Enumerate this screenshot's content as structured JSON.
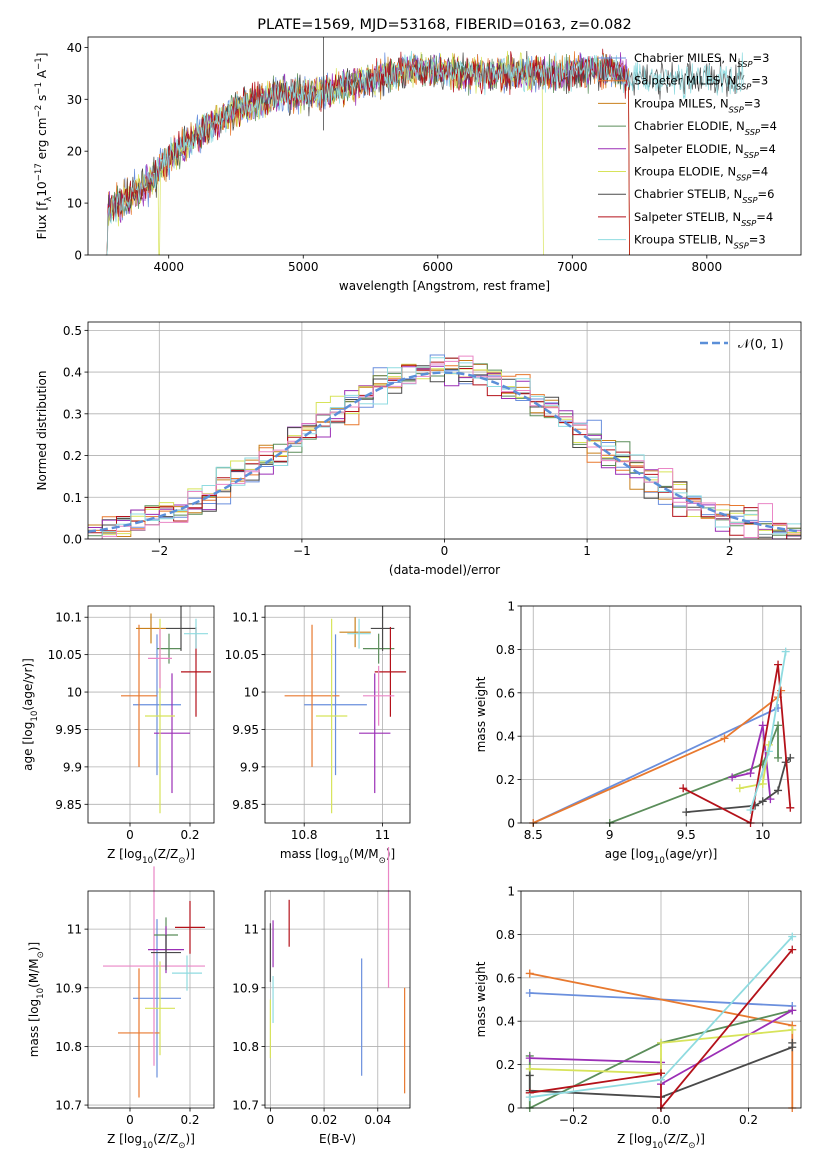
{
  "colors": {
    "chabrier_miles": "#6a8fdd",
    "salpeter_miles": "#e8792f",
    "kroupa_miles": "#c9801c",
    "chabrier_elodie": "#5b8d5a",
    "salpeter_elodie": "#9b2fb6",
    "kroupa_elodie": "#d7e35a",
    "chabrier_stelib": "#4a4a4a",
    "salpeter_stelib": "#b4121a",
    "kroupa_stelib": "#8fdbe0",
    "pink": "#ea86c6",
    "normal_curve": "#5b8fd8"
  },
  "chart_data": [
    {
      "type": "line",
      "title": "PLATE=1569, MJD=53168, FIBERID=0163, z=0.082",
      "xlabel": "wavelength [Angstrom, rest frame]",
      "ylabel": "Flux [f$_\\lambda$10$^{-17}$ erg cm$^{-2}$ s$^{-1}$ A$^{-1}$]",
      "xlim": [
        3400,
        8700
      ],
      "ylim": [
        0,
        42
      ],
      "xticks": [
        "4000",
        "5000",
        "6000",
        "7000",
        "8000"
      ],
      "yticks": [
        "0",
        "10",
        "20",
        "30",
        "40"
      ],
      "grid": false,
      "legend_position": "right",
      "legend": [
        {
          "label": "Chabrier MILES, N",
          "sub": "SSP",
          "tail": "=3",
          "color": "#6a8fdd"
        },
        {
          "label": "Salpeter MILES, N",
          "sub": "SSP",
          "tail": "=3",
          "color": "#e8792f"
        },
        {
          "label": "Kroupa MILES, N",
          "sub": "SSP",
          "tail": "=3",
          "color": "#c9801c"
        },
        {
          "label": "Chabrier ELODIE, N",
          "sub": "SSP",
          "tail": "=4",
          "color": "#5b8d5a"
        },
        {
          "label": "Salpeter ELODIE, N",
          "sub": "SSP",
          "tail": "=4",
          "color": "#9b2fb6"
        },
        {
          "label": "Kroupa ELODIE, N",
          "sub": "SSP",
          "tail": "=4",
          "color": "#d7e35a"
        },
        {
          "label": "Chabrier STELIB, N",
          "sub": "SSP",
          "tail": "=6",
          "color": "#4a4a4a"
        },
        {
          "label": "Salpeter STELIB, N",
          "sub": "SSP",
          "tail": "=4",
          "color": "#b4121a"
        },
        {
          "label": "Kroupa STELIB, N",
          "sub": "SSP",
          "tail": "=3",
          "color": "#8fdbe0"
        }
      ],
      "continuum": {
        "x": [
          3530,
          3700,
          3850,
          3950,
          4100,
          4300,
          4500,
          4800,
          5100,
          5400,
          5800,
          6200,
          6600,
          7000,
          7300,
          7420
        ],
        "y": [
          8,
          11,
          14,
          17,
          21,
          25,
          28,
          31,
          31,
          33,
          36,
          35,
          35,
          35,
          36,
          34
        ]
      }
    },
    {
      "type": "histogram",
      "xlabel": "(data-model)/error",
      "ylabel": "Normed distribution",
      "xlim": [
        -2.5,
        2.5
      ],
      "ylim": [
        0,
        0.52
      ],
      "xticks": [
        -2,
        -1,
        0,
        1,
        2
      ],
      "yticks": [
        0.0,
        0.1,
        0.2,
        0.3,
        0.4,
        0.5
      ],
      "xtick_labels": [
        "−2",
        "−1",
        "0",
        "1",
        "2"
      ],
      "ytick_labels": [
        "0.0",
        "0.1",
        "0.2",
        "0.3",
        "0.4",
        "0.5"
      ],
      "grid": true,
      "legend_position": "top-right",
      "legend": [
        {
          "label": "$\\mathcal{N}(0, 1)$",
          "style": "dashed"
        }
      ],
      "bin_width": 0.1
    },
    {
      "type": "errorbar",
      "xlabel": "Z [log$_{10}$(Z/Z$_\\odot$)]",
      "ylabel": "age  [log$_{10}$(age/yr)]",
      "xlim": [
        -0.14,
        0.28
      ],
      "ylim": [
        9.825,
        10.115
      ],
      "xticks": [
        0.0,
        0.2
      ],
      "yticks": [
        9.85,
        9.9,
        9.95,
        10.0,
        10.05,
        10.1
      ],
      "grid": true,
      "points": [
        {
          "x": 0.09,
          "y": 9.983,
          "xerr": 0.08,
          "yerr": 0.094,
          "color": "#6a8fdd"
        },
        {
          "x": 0.03,
          "y": 9.995,
          "xerr": 0.06,
          "yerr": 0.095,
          "color": "#e8792f"
        },
        {
          "x": 0.07,
          "y": 10.085,
          "xerr": 0.05,
          "yerr": 0.02,
          "color": "#c9801c"
        },
        {
          "x": 0.13,
          "y": 10.058,
          "xerr": 0.04,
          "yerr": 0.02,
          "color": "#5b8d5a"
        },
        {
          "x": 0.14,
          "y": 9.945,
          "xerr": 0.06,
          "yerr": 0.08,
          "color": "#9b2fb6"
        },
        {
          "x": 0.1,
          "y": 9.968,
          "xerr": 0.05,
          "yerr": 0.13,
          "color": "#d7e35a"
        },
        {
          "x": 0.17,
          "y": 10.085,
          "xerr": 0.05,
          "yerr": 0.03,
          "color": "#4a4a4a"
        },
        {
          "x": 0.22,
          "y": 10.027,
          "xerr": 0.05,
          "yerr": 0.06,
          "color": "#b4121a"
        },
        {
          "x": 0.1,
          "y": 10.045,
          "xerr": 0.04,
          "yerr": 0.04,
          "color": "#ea86c6"
        },
        {
          "x": 0.22,
          "y": 10.078,
          "xerr": 0.04,
          "yerr": 0.02,
          "color": "#8fdbe0"
        }
      ]
    },
    {
      "type": "errorbar",
      "xlabel": "mass [log$_{10}$(M/M$_\\odot$)]",
      "ylabel": "",
      "xlim": [
        10.7,
        11.07
      ],
      "ylim": [
        9.825,
        10.115
      ],
      "xticks": [
        10.8,
        11.0
      ],
      "yticks": [
        9.85,
        9.9,
        9.95,
        10.0,
        10.05,
        10.1
      ],
      "grid": true,
      "points": [
        {
          "x": 10.88,
          "y": 9.983,
          "xerr": 0.08,
          "yerr": 0.094,
          "color": "#6a8fdd"
        },
        {
          "x": 10.82,
          "y": 9.995,
          "xerr": 0.07,
          "yerr": 0.095,
          "color": "#e8792f"
        },
        {
          "x": 10.93,
          "y": 10.08,
          "xerr": 0.04,
          "yerr": 0.02,
          "color": "#c9801c"
        },
        {
          "x": 10.99,
          "y": 10.058,
          "xerr": 0.04,
          "yerr": 0.02,
          "color": "#5b8d5a"
        },
        {
          "x": 10.98,
          "y": 9.945,
          "xerr": 0.04,
          "yerr": 0.08,
          "color": "#9b2fb6"
        },
        {
          "x": 10.87,
          "y": 9.968,
          "xerr": 0.04,
          "yerr": 0.13,
          "color": "#d7e35a"
        },
        {
          "x": 11.0,
          "y": 10.085,
          "xerr": 0.03,
          "yerr": 0.03,
          "color": "#4a4a4a"
        },
        {
          "x": 11.02,
          "y": 10.027,
          "xerr": 0.04,
          "yerr": 0.06,
          "color": "#b4121a"
        },
        {
          "x": 10.99,
          "y": 9.995,
          "xerr": 0.04,
          "yerr": 0.04,
          "color": "#ea86c6"
        },
        {
          "x": 10.94,
          "y": 10.078,
          "xerr": 0.03,
          "yerr": 0.02,
          "color": "#8fdbe0"
        }
      ]
    },
    {
      "type": "line",
      "xlabel": "age  [log$_{10}$(age/yr)]",
      "ylabel": "mass weight",
      "xlim": [
        8.42,
        10.25
      ],
      "ylim": [
        0,
        1.0
      ],
      "xticks": [
        8.5,
        9.0,
        9.5,
        10.0
      ],
      "yticks": [
        0.0,
        0.2,
        0.4,
        0.6,
        0.8,
        1.0
      ],
      "grid": true,
      "series": [
        {
          "color": "#6a8fdd",
          "x": [
            8.5,
            10.1
          ],
          "y": [
            0.0,
            0.53
          ]
        },
        {
          "color": "#e8792f",
          "x": [
            8.5,
            9.75,
            10.1,
            10.12
          ],
          "y": [
            0.0,
            0.39,
            0.58,
            0.61
          ]
        },
        {
          "color": "#5b8d5a",
          "x": [
            9.0,
            10.0,
            10.1,
            10.1
          ],
          "y": [
            0.0,
            0.27,
            0.45,
            0.3
          ]
        },
        {
          "color": "#9b2fb6",
          "x": [
            9.8,
            9.92,
            10.0,
            10.05
          ],
          "y": [
            0.21,
            0.23,
            0.45,
            0.11
          ]
        },
        {
          "color": "#d7e35a",
          "x": [
            9.85,
            10.0,
            10.04
          ],
          "y": [
            0.16,
            0.18,
            0.36
          ]
        },
        {
          "color": "#4a4a4a",
          "x": [
            9.5,
            9.95,
            10.0,
            10.1,
            10.15,
            10.18
          ],
          "y": [
            0.05,
            0.08,
            0.1,
            0.15,
            0.28,
            0.3
          ]
        },
        {
          "color": "#b4121a",
          "x": [
            9.48,
            9.92,
            10.1,
            10.18
          ],
          "y": [
            0.16,
            0.0,
            0.73,
            0.07
          ]
        },
        {
          "color": "#8fdbe0",
          "x": [
            9.92,
            10.04,
            10.15
          ],
          "y": [
            0.06,
            0.33,
            0.79
          ]
        }
      ]
    },
    {
      "type": "errorbar",
      "xlabel": "Z [log$_{10}$(Z/Z$_\\odot$)]",
      "ylabel": "mass [log$_{10}$(M/M$_\\odot$)]",
      "xlim": [
        -0.14,
        0.28
      ],
      "ylim": [
        10.695,
        11.065
      ],
      "xticks": [
        0.0,
        0.2
      ],
      "yticks": [
        10.7,
        10.8,
        10.9,
        11.0
      ],
      "grid": true,
      "points": [
        {
          "x": 0.09,
          "y": 10.882,
          "xerr": 0.08,
          "yerr": 0.135,
          "color": "#6a8fdd"
        },
        {
          "x": 0.03,
          "y": 10.823,
          "xerr": 0.07,
          "yerr": 0.11,
          "color": "#e8792f"
        },
        {
          "x": 0.08,
          "y": 10.937,
          "xerr": 0.17,
          "yerr": 0.17,
          "color": "#ea86c6"
        },
        {
          "x": 0.12,
          "y": 10.99,
          "xerr": 0.04,
          "yerr": 0.03,
          "color": "#5b8d5a"
        },
        {
          "x": 0.12,
          "y": 10.965,
          "xerr": 0.06,
          "yerr": 0.04,
          "color": "#9b2fb6"
        },
        {
          "x": 0.1,
          "y": 10.865,
          "xerr": 0.05,
          "yerr": 0.08,
          "color": "#d7e35a"
        },
        {
          "x": 0.12,
          "y": 10.96,
          "xerr": 0.05,
          "yerr": 0.03,
          "color": "#4a4a4a"
        },
        {
          "x": 0.2,
          "y": 11.003,
          "xerr": 0.05,
          "yerr": 0.045,
          "color": "#b4121a"
        },
        {
          "x": 0.19,
          "y": 10.925,
          "xerr": 0.05,
          "yerr": 0.03,
          "color": "#8fdbe0"
        }
      ]
    },
    {
      "type": "errorbar",
      "xlabel": "E(B-V)",
      "ylabel": "",
      "xlim": [
        -0.002,
        0.052
      ],
      "ylim": [
        10.695,
        11.065
      ],
      "xticks": [
        0.0,
        0.02,
        0.04
      ],
      "yticks": [
        10.7,
        10.8,
        10.9,
        11.0
      ],
      "grid": true,
      "points": [
        {
          "x": 0.0,
          "y": 10.83,
          "yerr": 0.05,
          "color": "#d7e35a"
        },
        {
          "x": 0.0,
          "y": 10.96,
          "yerr": 0.05,
          "color": "#4a4a4a"
        },
        {
          "x": 0.001,
          "y": 10.88,
          "yerr": 0.04,
          "color": "#8fdbe0"
        },
        {
          "x": 0.001,
          "y": 10.975,
          "yerr": 0.04,
          "color": "#9b2fb6"
        },
        {
          "x": 0.007,
          "y": 11.01,
          "yerr": 0.04,
          "color": "#b4121a"
        },
        {
          "x": 0.034,
          "y": 10.85,
          "yerr": 0.1,
          "color": "#6a8fdd"
        },
        {
          "x": 0.044,
          "y": 11.02,
          "yerr": 0.12,
          "color": "#ea86c6"
        },
        {
          "x": 0.05,
          "y": 10.81,
          "yerr": 0.09,
          "color": "#e8792f"
        }
      ]
    },
    {
      "type": "line",
      "xlabel": "Z [log$_{10}$(Z/Z$_\\odot$)]",
      "ylabel": "mass weight",
      "xlim": [
        -0.32,
        0.32
      ],
      "ylim": [
        0,
        1.0
      ],
      "xticks": [
        -0.2,
        0.0,
        0.2
      ],
      "yticks": [
        0.0,
        0.2,
        0.4,
        0.6,
        0.8,
        1.0
      ],
      "xtick_labels": [
        "−0.2",
        "0.0",
        "0.2"
      ],
      "grid": true,
      "series": [
        {
          "color": "#6a8fdd",
          "x": [
            -0.3,
            0.3
          ],
          "y": [
            0.53,
            0.47
          ]
        },
        {
          "color": "#e8792f",
          "x": [
            -0.3,
            0.3,
            0.3
          ],
          "y": [
            0.62,
            0.38,
            0.0
          ]
        },
        {
          "color": "#5b8d5a",
          "x": [
            -0.3,
            -0.3,
            0.0,
            0.3
          ],
          "y": [
            0.24,
            0.0,
            0.3,
            0.45
          ]
        },
        {
          "color": "#9b2fb6",
          "x": [
            -0.3,
            0.0,
            0.0,
            0.3
          ],
          "y": [
            0.23,
            0.21,
            0.11,
            0.45
          ]
        },
        {
          "color": "#d7e35a",
          "x": [
            -0.3,
            0.0,
            0.0,
            0.3
          ],
          "y": [
            0.18,
            0.16,
            0.3,
            0.36
          ]
        },
        {
          "color": "#4a4a4a",
          "x": [
            -0.3,
            -0.3,
            0.0,
            0.3,
            0.3
          ],
          "y": [
            0.15,
            0.08,
            0.05,
            0.28,
            0.3
          ]
        },
        {
          "color": "#b4121a",
          "x": [
            -0.3,
            0.0,
            0.0,
            0.3
          ],
          "y": [
            0.07,
            0.16,
            0.0,
            0.73
          ]
        },
        {
          "color": "#8fdbe0",
          "x": [
            -0.3,
            0.0,
            0.3
          ],
          "y": [
            0.05,
            0.13,
            0.79
          ]
        }
      ]
    }
  ]
}
